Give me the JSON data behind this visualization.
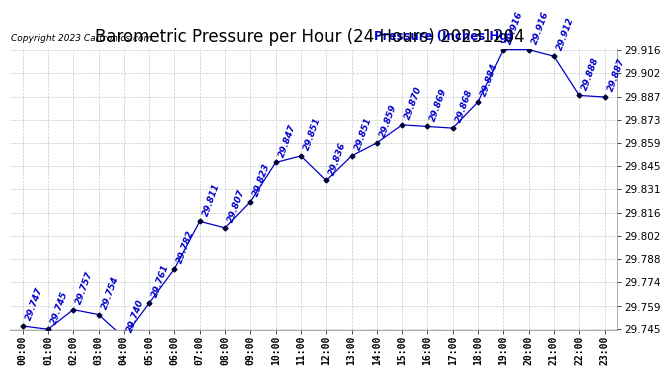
{
  "title": "Barometric Pressure per Hour (24 Hours) 20231204",
  "copyright": "Copyright 2023 Cartronics.com",
  "legend_label": "Pressure (Inches Hg)",
  "hours": [
    "00:00",
    "01:00",
    "02:00",
    "03:00",
    "04:00",
    "05:00",
    "06:00",
    "07:00",
    "08:00",
    "09:00",
    "10:00",
    "11:00",
    "12:00",
    "13:00",
    "14:00",
    "15:00",
    "16:00",
    "17:00",
    "18:00",
    "19:00",
    "20:00",
    "21:00",
    "22:00",
    "23:00"
  ],
  "pressure": [
    29.747,
    29.745,
    29.757,
    29.754,
    29.74,
    29.761,
    29.782,
    29.811,
    29.807,
    29.823,
    29.847,
    29.851,
    29.836,
    29.851,
    29.859,
    29.87,
    29.869,
    29.868,
    29.884,
    29.916,
    29.916,
    29.912,
    29.888,
    29.887
  ],
  "ylim_min": 29.745,
  "ylim_max": 29.916,
  "yticks": [
    29.745,
    29.759,
    29.774,
    29.788,
    29.802,
    29.816,
    29.831,
    29.845,
    29.859,
    29.873,
    29.887,
    29.902,
    29.916
  ],
  "line_color": "#0000CC",
  "marker_color": "#000033",
  "bg_color": "#ffffff",
  "plot_bg_color": "#ffffff",
  "grid_color": "#bbbbbb",
  "title_color": "#000000",
  "copyright_color": "#000000",
  "legend_color": "#0000CC",
  "annotation_color": "#0000CC",
  "annotation_fontsize": 6.5,
  "title_fontsize": 12,
  "xlabel_fontsize": 7,
  "ylabel_fontsize": 7.5
}
